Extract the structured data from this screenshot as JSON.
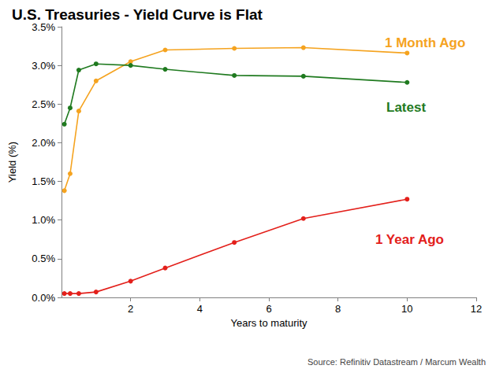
{
  "chart_data": {
    "type": "line",
    "title": "U.S. Treasuries - Yield Curve is Flat",
    "x_label": "Years to maturity",
    "y_label": "Yield (%)",
    "source": "Source: Refinitiv Datastream / Marcum Wealth",
    "x": [
      0.083,
      0.25,
      0.5,
      1,
      2,
      3,
      5,
      7,
      10
    ],
    "series": [
      {
        "name": "1 Month Ago",
        "color": "#f5a31f",
        "values": [
          1.38,
          1.6,
          2.41,
          2.8,
          3.05,
          3.2,
          3.22,
          3.23,
          3.16
        ]
      },
      {
        "name": "Latest",
        "color": "#1f7a1f",
        "values": [
          2.24,
          2.45,
          2.94,
          3.02,
          3.0,
          2.95,
          2.87,
          2.86,
          2.78
        ]
      },
      {
        "name": "1 Year Ago",
        "color": "#e3201b",
        "values": [
          0.05,
          0.05,
          0.05,
          0.07,
          0.21,
          0.38,
          0.71,
          1.02,
          1.27
        ]
      }
    ],
    "xlim": [
      0,
      12
    ],
    "xticks": [
      2,
      4,
      6,
      8,
      10,
      12
    ],
    "ylim": [
      0,
      3.5
    ],
    "yticks": [
      {
        "value": 0,
        "label": "0.0%"
      },
      {
        "value": 0.5,
        "label": "0.5%"
      },
      {
        "value": 1,
        "label": "1.0%"
      },
      {
        "value": 1.5,
        "label": "1.5%"
      },
      {
        "value": 2,
        "label": "2.0%"
      },
      {
        "value": 2.5,
        "label": "2.5%"
      },
      {
        "value": 3,
        "label": "3.0%"
      },
      {
        "value": 3.5,
        "label": "3.5%"
      }
    ],
    "grid": false,
    "marker": "circle"
  }
}
